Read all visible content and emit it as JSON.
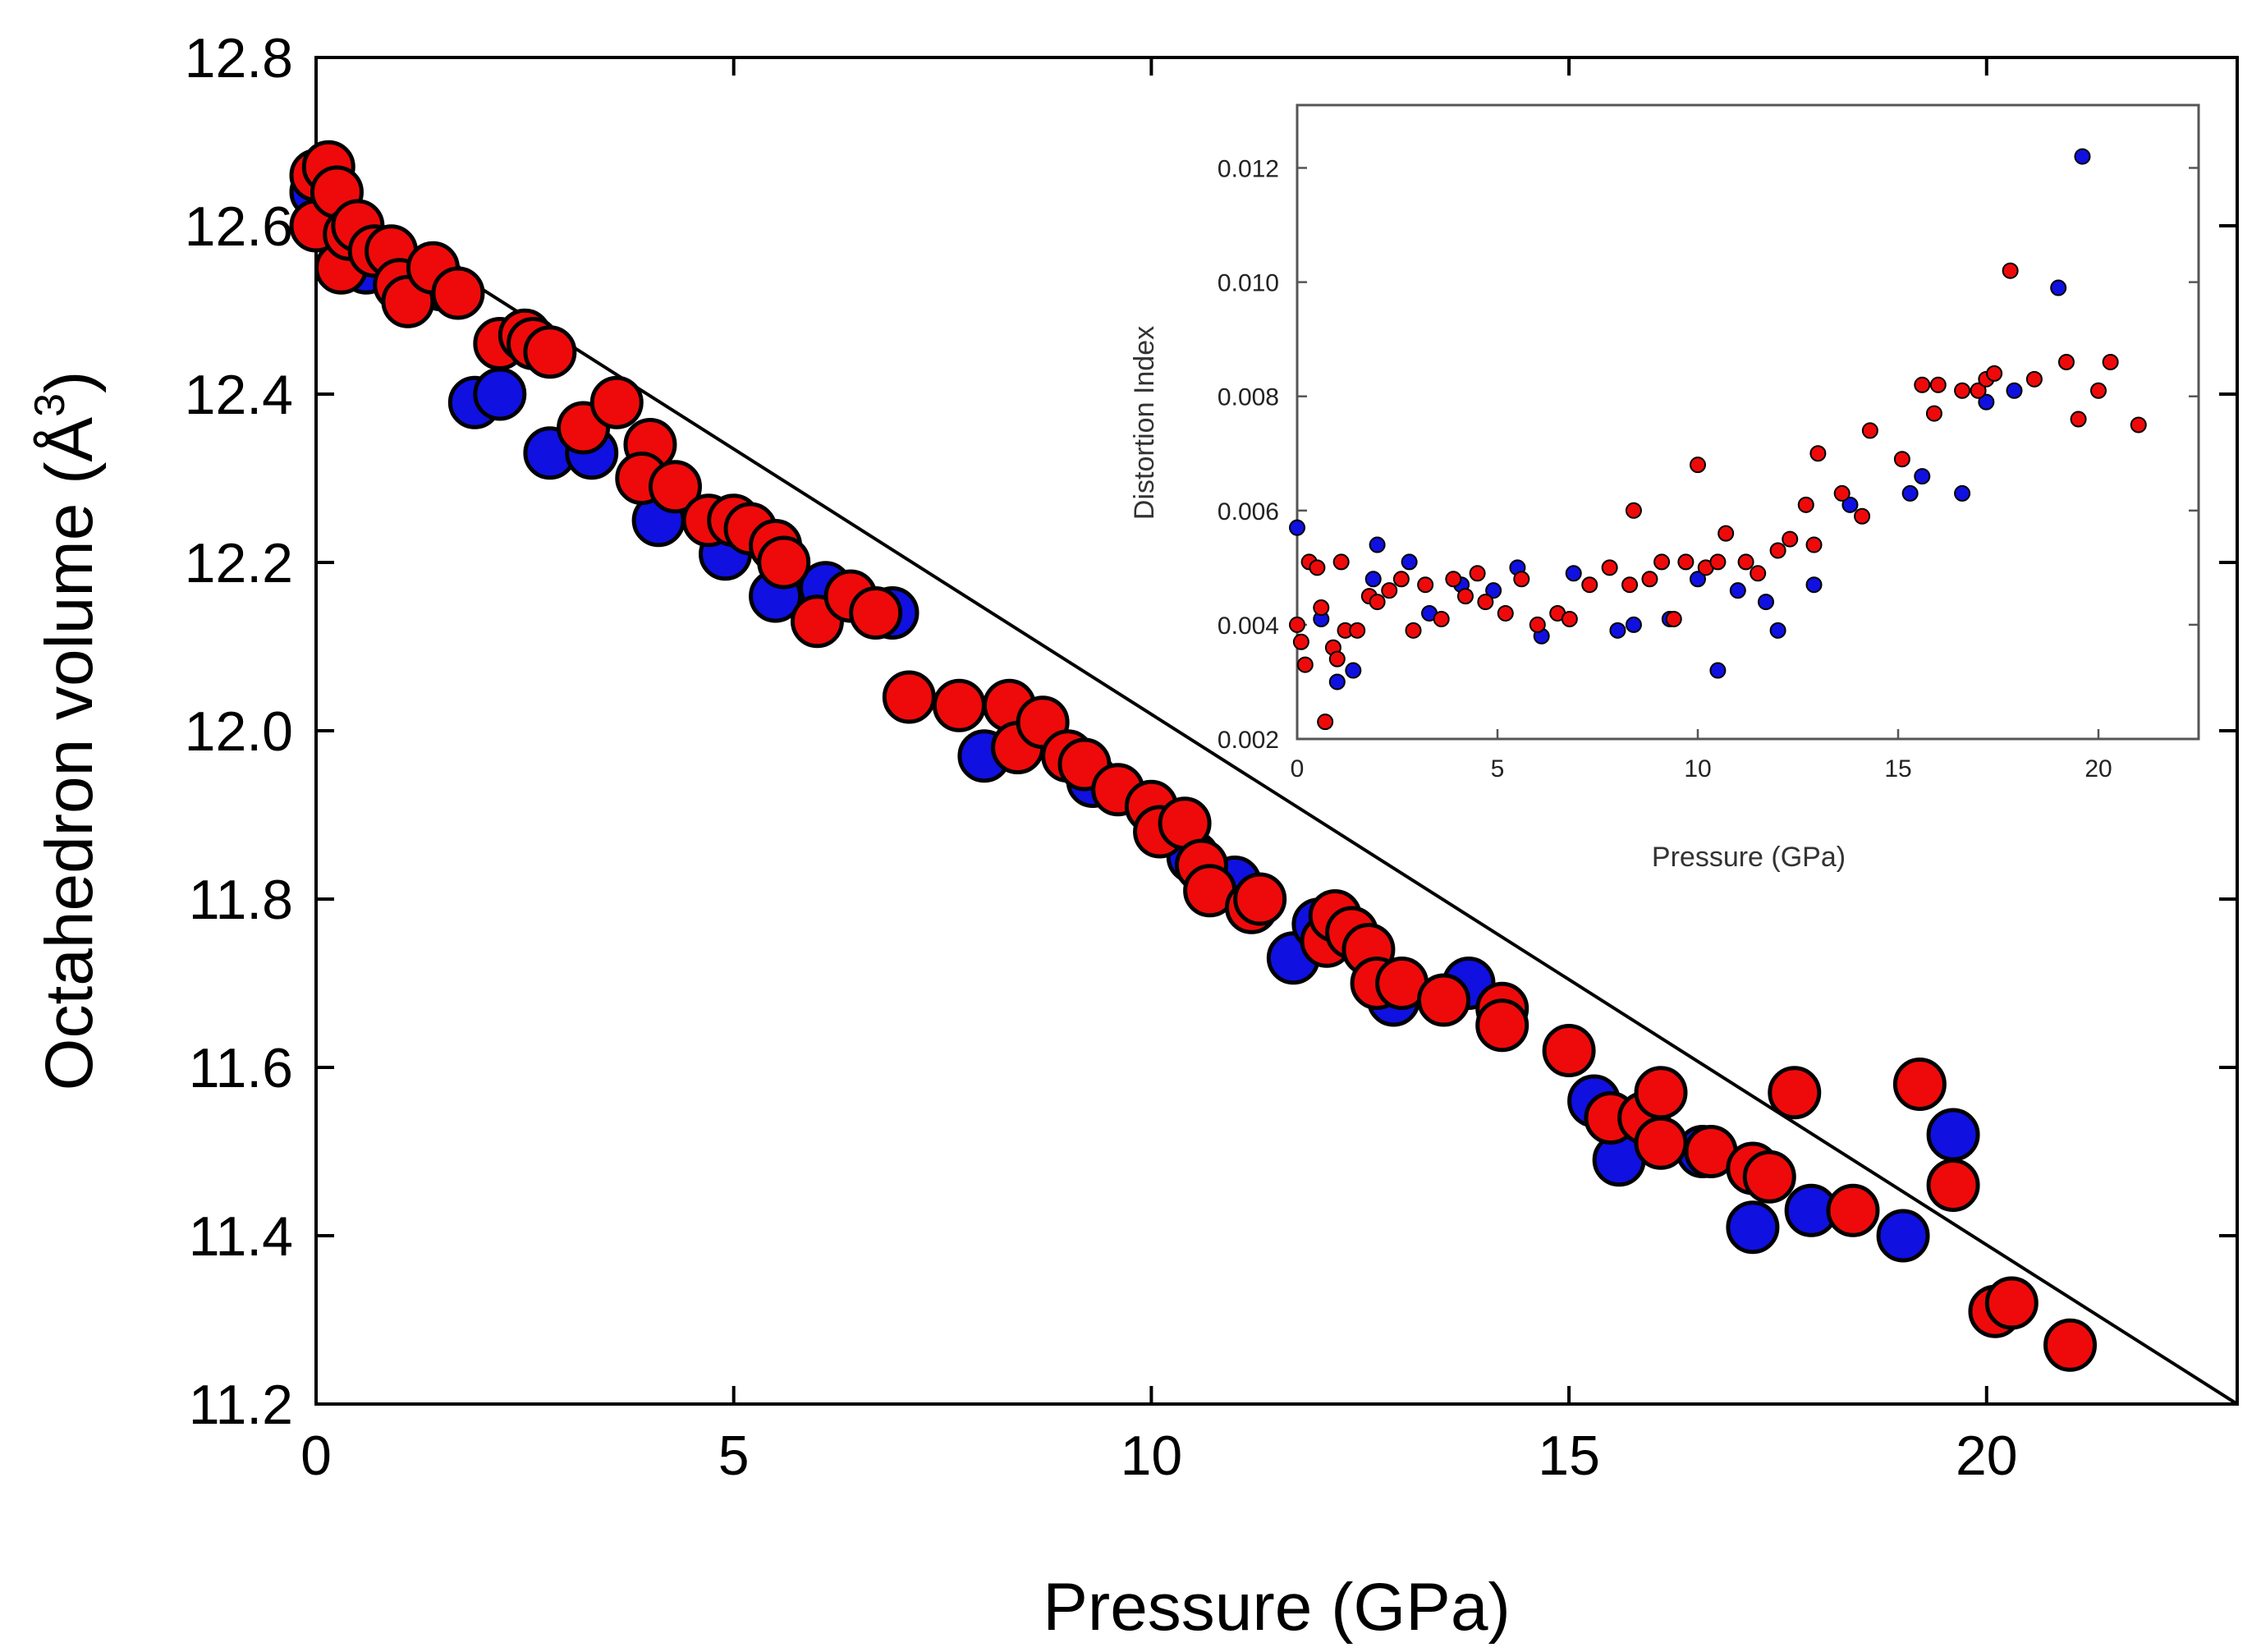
{
  "chart_data": [
    {
      "type": "scatter",
      "name": "main",
      "xlabel": "Pressure (GPa)",
      "ylabel": "Octahedron volume (Å",
      "ylabel_sup": "3",
      "ylabel_close": ")",
      "xlim": [
        0,
        23
      ],
      "ylim": [
        11.2,
        12.8
      ],
      "xticks": [
        "0",
        "5",
        "10",
        "15",
        "20"
      ],
      "yticks": [
        "11.2",
        "11.4",
        "11.6",
        "11.8",
        "12.0",
        "12.2",
        "12.4",
        "12.6",
        "12.8"
      ],
      "colors": {
        "blue": "#1010e0",
        "red": "#ee0a0a",
        "outline": "#000000"
      },
      "fit_line": {
        "x": [
          0,
          23
        ],
        "y": [
          12.65,
          11.2
        ]
      },
      "series": [
        {
          "name": "blue",
          "points": [
            [
              0.0,
              12.64
            ],
            [
              0.6,
              12.55
            ],
            [
              1.5,
              12.53
            ],
            [
              1.9,
              12.39
            ],
            [
              2.2,
              12.4
            ],
            [
              2.8,
              12.33
            ],
            [
              3.3,
              12.33
            ],
            [
              4.1,
              12.25
            ],
            [
              4.9,
              12.21
            ],
            [
              5.5,
              12.16
            ],
            [
              6.1,
              12.17
            ],
            [
              6.9,
              12.14
            ],
            [
              8.0,
              11.97
            ],
            [
              8.4,
              11.98
            ],
            [
              9.3,
              11.94
            ],
            [
              10.5,
              11.85
            ],
            [
              11.0,
              11.82
            ],
            [
              11.7,
              11.73
            ],
            [
              12.0,
              11.77
            ],
            [
              12.9,
              11.68
            ],
            [
              13.8,
              11.7
            ],
            [
              15.3,
              11.56
            ],
            [
              15.6,
              11.49
            ],
            [
              16.6,
              11.5
            ],
            [
              17.2,
              11.41
            ],
            [
              17.9,
              11.43
            ],
            [
              19.0,
              11.4
            ],
            [
              19.6,
              11.52
            ]
          ]
        },
        {
          "name": "red",
          "points": [
            [
              0.0,
              12.66
            ],
            [
              0.0,
              12.6
            ],
            [
              0.15,
              12.67
            ],
            [
              0.25,
              12.64
            ],
            [
              0.3,
              12.55
            ],
            [
              0.4,
              12.59
            ],
            [
              0.5,
              12.6
            ],
            [
              0.7,
              12.57
            ],
            [
              0.9,
              12.57
            ],
            [
              1.0,
              12.53
            ],
            [
              1.1,
              12.51
            ],
            [
              1.4,
              12.55
            ],
            [
              1.7,
              12.52
            ],
            [
              2.2,
              12.46
            ],
            [
              2.5,
              12.47
            ],
            [
              2.6,
              12.46
            ],
            [
              2.8,
              12.45
            ],
            [
              3.2,
              12.36
            ],
            [
              3.6,
              12.39
            ],
            [
              4.0,
              12.34
            ],
            [
              3.9,
              12.3
            ],
            [
              4.3,
              12.29
            ],
            [
              4.7,
              12.25
            ],
            [
              5.0,
              12.25
            ],
            [
              5.2,
              12.24
            ],
            [
              5.5,
              12.22
            ],
            [
              5.6,
              12.2
            ],
            [
              6.0,
              12.13
            ],
            [
              6.4,
              12.16
            ],
            [
              6.7,
              12.14
            ],
            [
              7.1,
              12.04
            ],
            [
              7.7,
              12.03
            ],
            [
              8.3,
              12.03
            ],
            [
              8.4,
              11.98
            ],
            [
              8.7,
              12.01
            ],
            [
              9.0,
              11.97
            ],
            [
              9.2,
              11.96
            ],
            [
              9.6,
              11.93
            ],
            [
              10.0,
              11.91
            ],
            [
              10.1,
              11.88
            ],
            [
              10.4,
              11.89
            ],
            [
              10.6,
              11.84
            ],
            [
              10.7,
              11.81
            ],
            [
              11.2,
              11.79
            ],
            [
              11.3,
              11.8
            ],
            [
              12.1,
              11.75
            ],
            [
              12.2,
              11.78
            ],
            [
              12.4,
              11.76
            ],
            [
              12.6,
              11.74
            ],
            [
              12.7,
              11.7
            ],
            [
              13.0,
              11.7
            ],
            [
              13.5,
              11.68
            ],
            [
              14.2,
              11.67
            ],
            [
              14.2,
              11.65
            ],
            [
              15.0,
              11.62
            ],
            [
              15.5,
              11.54
            ],
            [
              15.9,
              11.54
            ],
            [
              16.1,
              11.57
            ],
            [
              16.1,
              11.51
            ],
            [
              16.7,
              11.5
            ],
            [
              17.2,
              11.48
            ],
            [
              17.4,
              11.47
            ],
            [
              17.7,
              11.57
            ],
            [
              18.4,
              11.43
            ],
            [
              19.2,
              11.58
            ],
            [
              19.6,
              11.46
            ],
            [
              20.1,
              11.31
            ],
            [
              20.3,
              11.32
            ],
            [
              21.0,
              11.27
            ]
          ]
        }
      ]
    },
    {
      "type": "scatter",
      "name": "inset",
      "xlabel": "Pressure (GPa)",
      "ylabel": "Distortion Index",
      "xlim": [
        0,
        22.5
      ],
      "ylim": [
        0.002,
        0.0131
      ],
      "xticks": [
        "0",
        "5",
        "10",
        "15",
        "20"
      ],
      "yticks": [
        "0.002",
        "0.004",
        "0.006",
        "0.008",
        "0.010",
        "0.012"
      ],
      "series": [
        {
          "name": "blue",
          "points": [
            [
              0.0,
              0.0057
            ],
            [
              0.6,
              0.0041
            ],
            [
              1.0,
              0.003
            ],
            [
              1.4,
              0.0032
            ],
            [
              1.9,
              0.0048
            ],
            [
              2.0,
              0.0054
            ],
            [
              2.8,
              0.0051
            ],
            [
              3.3,
              0.0042
            ],
            [
              4.1,
              0.0047
            ],
            [
              4.9,
              0.0046
            ],
            [
              5.5,
              0.005
            ],
            [
              6.1,
              0.0038
            ],
            [
              6.9,
              0.0049
            ],
            [
              8.0,
              0.0039
            ],
            [
              8.4,
              0.004
            ],
            [
              9.3,
              0.0041
            ],
            [
              10.0,
              0.0048
            ],
            [
              10.5,
              0.0032
            ],
            [
              11.0,
              0.0046
            ],
            [
              11.7,
              0.0044
            ],
            [
              12.0,
              0.0039
            ],
            [
              12.9,
              0.0047
            ],
            [
              13.8,
              0.0061
            ],
            [
              15.3,
              0.0063
            ],
            [
              15.6,
              0.0066
            ],
            [
              16.6,
              0.0063
            ],
            [
              17.2,
              0.0079
            ],
            [
              17.9,
              0.0081
            ],
            [
              19.0,
              0.0099
            ],
            [
              19.6,
              0.0122
            ]
          ]
        },
        {
          "name": "red",
          "points": [
            [
              0.0,
              0.004
            ],
            [
              0.1,
              0.0037
            ],
            [
              0.2,
              0.0033
            ],
            [
              0.3,
              0.0051
            ],
            [
              0.5,
              0.005
            ],
            [
              0.6,
              0.0043
            ],
            [
              0.7,
              0.0023
            ],
            [
              0.9,
              0.0036
            ],
            [
              1.0,
              0.0034
            ],
            [
              1.1,
              0.0051
            ],
            [
              1.2,
              0.0039
            ],
            [
              1.5,
              0.0039
            ],
            [
              1.8,
              0.0045
            ],
            [
              2.0,
              0.0044
            ],
            [
              2.3,
              0.0046
            ],
            [
              2.6,
              0.0048
            ],
            [
              2.9,
              0.0039
            ],
            [
              3.2,
              0.0047
            ],
            [
              3.6,
              0.0041
            ],
            [
              3.9,
              0.0048
            ],
            [
              4.2,
              0.0045
            ],
            [
              4.5,
              0.0049
            ],
            [
              4.7,
              0.0044
            ],
            [
              5.2,
              0.0042
            ],
            [
              5.6,
              0.0048
            ],
            [
              6.0,
              0.004
            ],
            [
              6.5,
              0.0042
            ],
            [
              6.8,
              0.0041
            ],
            [
              7.3,
              0.0047
            ],
            [
              7.8,
              0.005
            ],
            [
              8.3,
              0.0047
            ],
            [
              8.4,
              0.006
            ],
            [
              8.8,
              0.0048
            ],
            [
              9.1,
              0.0051
            ],
            [
              9.4,
              0.0041
            ],
            [
              9.7,
              0.0051
            ],
            [
              10.0,
              0.0068
            ],
            [
              10.2,
              0.005
            ],
            [
              10.5,
              0.0051
            ],
            [
              10.7,
              0.0056
            ],
            [
              11.2,
              0.0051
            ],
            [
              11.5,
              0.0049
            ],
            [
              12.0,
              0.0053
            ],
            [
              12.3,
              0.0055
            ],
            [
              12.7,
              0.0061
            ],
            [
              12.9,
              0.0054
            ],
            [
              13.0,
              0.007
            ],
            [
              13.6,
              0.0063
            ],
            [
              14.1,
              0.0059
            ],
            [
              14.3,
              0.0074
            ],
            [
              15.1,
              0.0069
            ],
            [
              15.6,
              0.0082
            ],
            [
              15.9,
              0.0077
            ],
            [
              16.0,
              0.0082
            ],
            [
              16.6,
              0.0081
            ],
            [
              17.0,
              0.0081
            ],
            [
              17.2,
              0.0083
            ],
            [
              17.4,
              0.0084
            ],
            [
              17.8,
              0.0102
            ],
            [
              18.4,
              0.0083
            ],
            [
              19.2,
              0.0086
            ],
            [
              19.5,
              0.0076
            ],
            [
              20.0,
              0.0081
            ],
            [
              20.3,
              0.0086
            ],
            [
              21.0,
              0.0075
            ]
          ]
        }
      ]
    }
  ]
}
